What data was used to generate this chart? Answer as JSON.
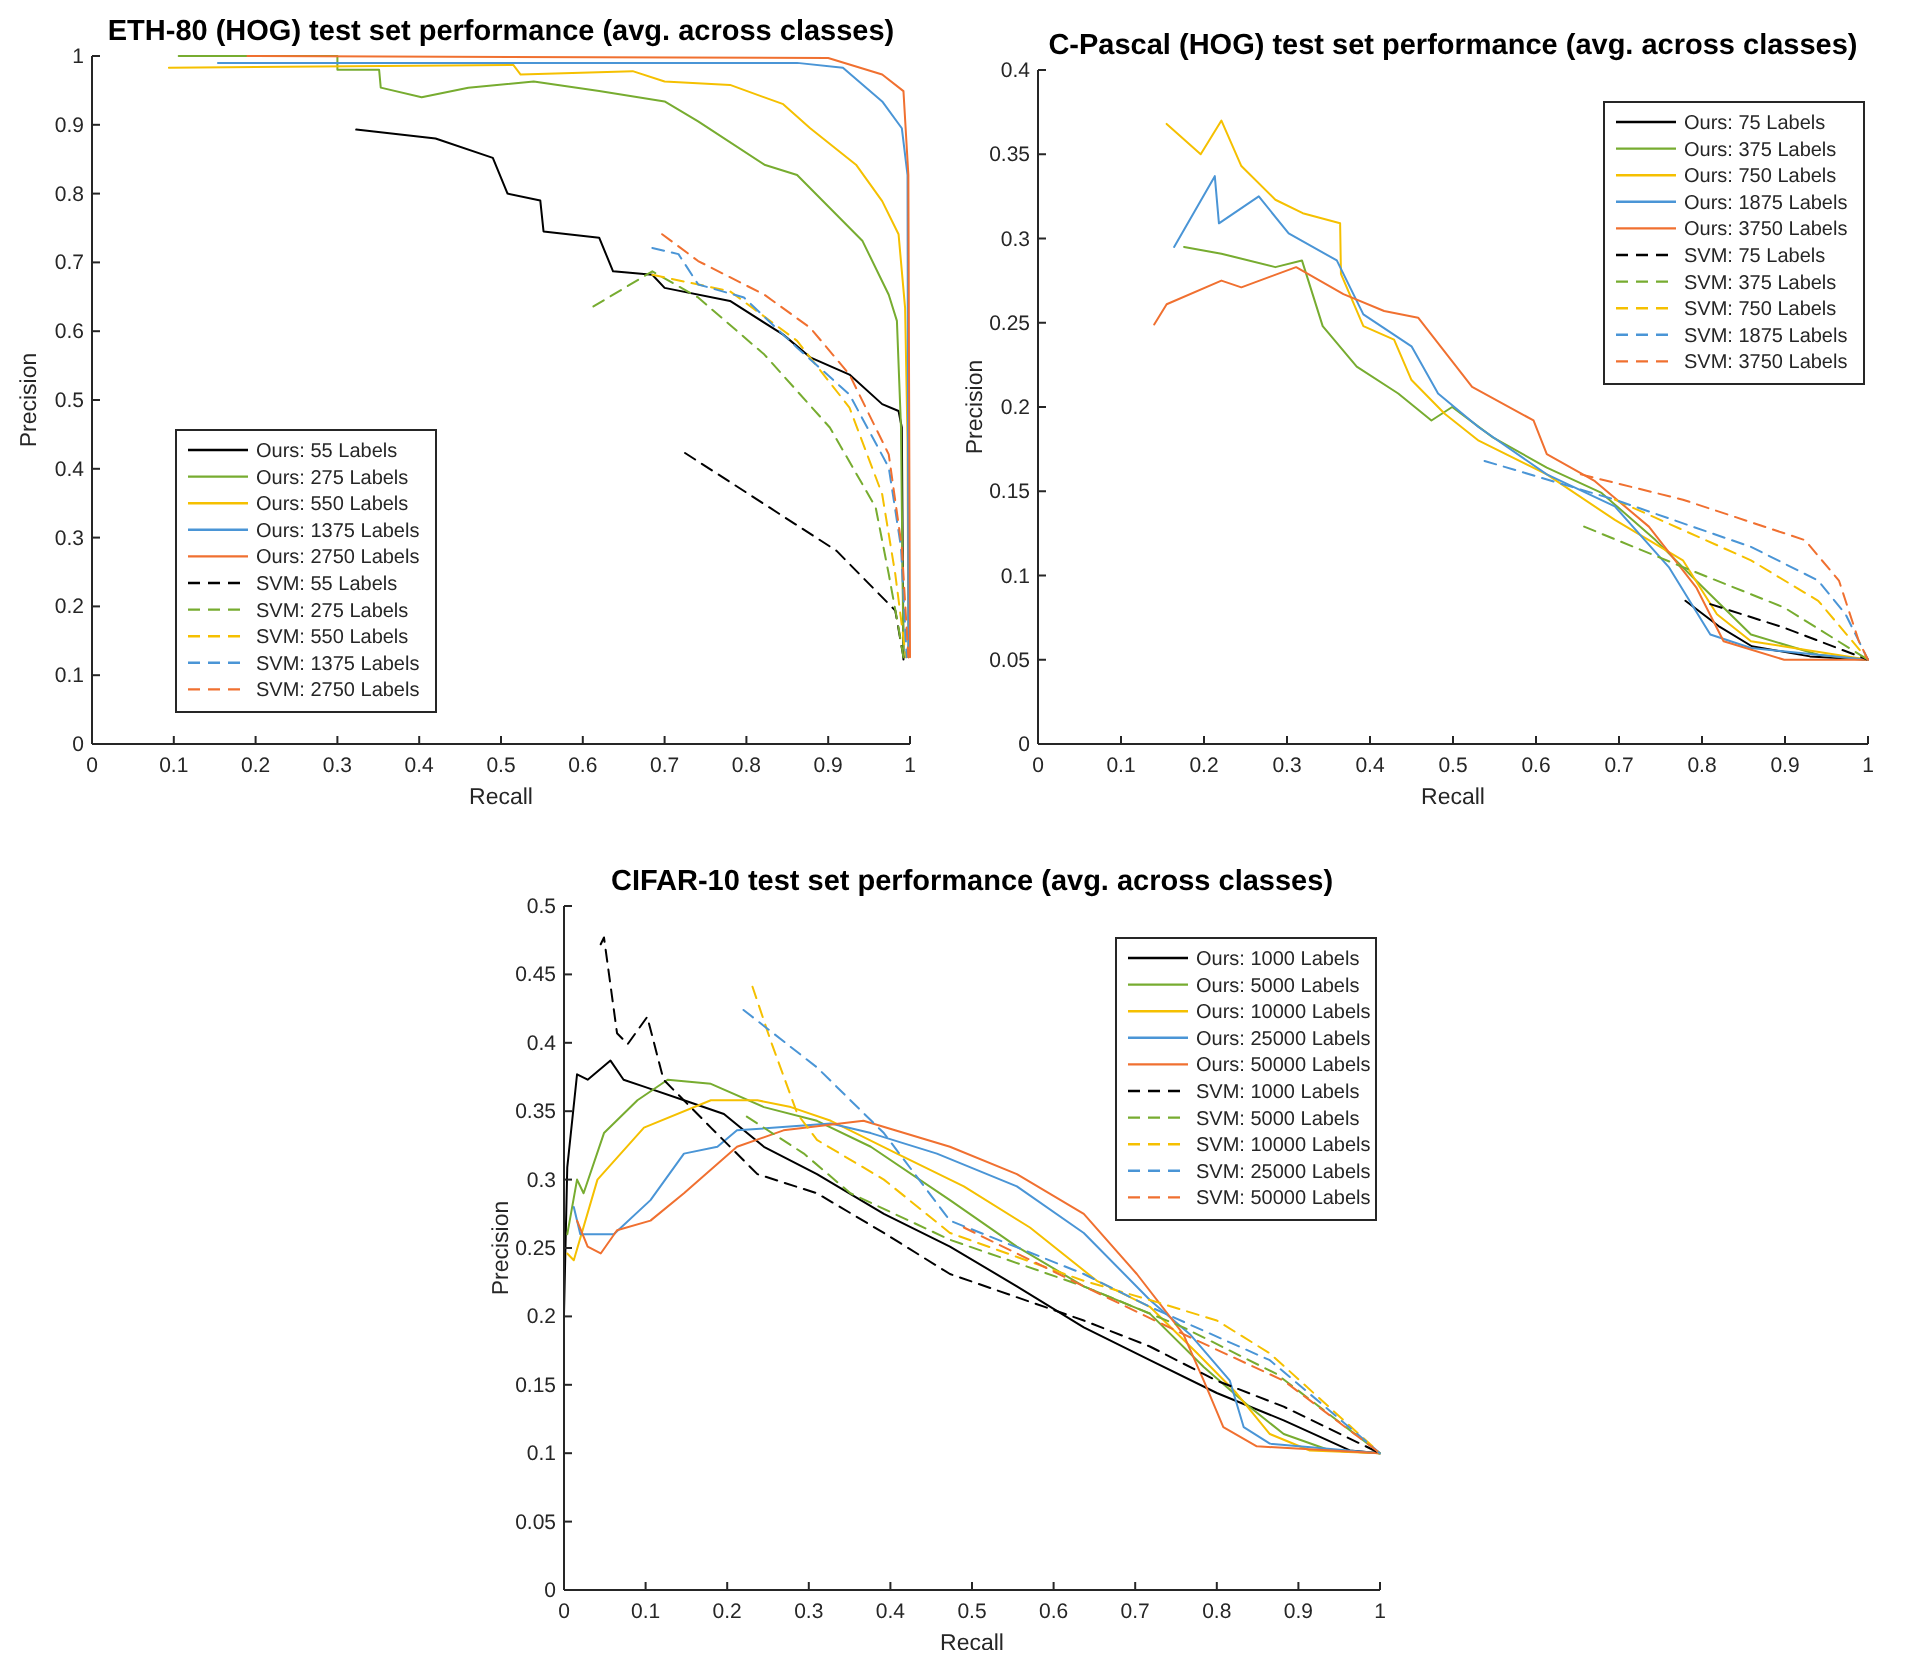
{
  "chart_data": [
    {
      "type": "line",
      "title": "ETH-80 (HOG) test set performance (avg. across classes)",
      "xlabel": "Recall",
      "ylabel": "Precision",
      "xlim": [
        0,
        1
      ],
      "ylim": [
        0,
        1
      ],
      "xticks": [
        0,
        0.1,
        0.2,
        0.3,
        0.4,
        0.5,
        0.6,
        0.7,
        0.8,
        0.9,
        1
      ],
      "yticks": [
        0,
        0.1,
        0.2,
        0.3,
        0.4,
        0.5,
        0.6,
        0.7,
        0.8,
        0.9,
        1
      ],
      "grid": false,
      "legend": "bottom left",
      "series": [
        {
          "name": "Ours: 55 Labels",
          "color": "#000000",
          "line_style": "solid",
          "x": [
            0.323,
            0.42,
            0.49,
            0.508,
            0.548,
            0.552,
            0.62,
            0.637,
            0.685,
            0.7,
            0.78,
            0.845,
            0.878,
            0.926,
            0.966,
            0.986,
            0.99,
            0.992
          ],
          "values": [
            0.893,
            0.88,
            0.852,
            0.8,
            0.79,
            0.745,
            0.736,
            0.687,
            0.682,
            0.663,
            0.644,
            0.595,
            0.562,
            0.537,
            0.494,
            0.484,
            0.46,
            0.123
          ]
        },
        {
          "name": "Ours: 275 Labels",
          "color": "#77ac30",
          "line_style": "solid",
          "x": [
            0.106,
            0.3,
            0.3,
            0.351,
            0.353,
            0.403,
            0.46,
            0.54,
            0.62,
            0.7,
            0.741,
            0.822,
            0.862,
            0.902,
            0.942,
            0.974,
            0.984,
            0.989,
            0.992
          ],
          "values": [
            1,
            1,
            0.98,
            0.98,
            0.954,
            0.94,
            0.954,
            0.963,
            0.949,
            0.934,
            0.905,
            0.842,
            0.827,
            0.779,
            0.731,
            0.653,
            0.615,
            0.46,
            0.126
          ]
        },
        {
          "name": "Ours: 550 Labels",
          "color": "#f5c000",
          "line_style": "solid",
          "x": [
            0.094,
            0.515,
            0.524,
            0.661,
            0.7,
            0.78,
            0.845,
            0.878,
            0.934,
            0.966,
            0.986,
            0.994,
            0.997,
            0.998
          ],
          "values": [
            0.983,
            0.987,
            0.973,
            0.978,
            0.963,
            0.958,
            0.93,
            0.895,
            0.842,
            0.789,
            0.741,
            0.634,
            0.44,
            0.126
          ]
        },
        {
          "name": "Ours: 1375 Labels",
          "color": "#4a95d6",
          "line_style": "solid",
          "x": [
            0.154,
            0.862,
            0.918,
            0.966,
            0.99,
            0.997,
            0.998
          ],
          "values": [
            0.99,
            0.99,
            0.983,
            0.934,
            0.895,
            0.827,
            0.126
          ]
        },
        {
          "name": "Ours: 2750 Labels",
          "color": "#f07030",
          "line_style": "solid",
          "x": [
            0.19,
            0.9,
            0.966,
            0.992,
            0.998,
            1
          ],
          "values": [
            1,
            0.997,
            0.973,
            0.949,
            0.827,
            0.126
          ]
        },
        {
          "name": "SVM: 55 Labels",
          "color": "#000000",
          "line_style": "dashed",
          "x": [
            0.725,
            0.91,
            0.982,
            0.992
          ],
          "values": [
            0.423,
            0.281,
            0.194,
            0.126
          ]
        },
        {
          "name": "SVM: 275 Labels",
          "color": "#77ac30",
          "line_style": "dashed",
          "x": [
            0.613,
            0.685,
            0.741,
            0.822,
            0.902,
            0.958,
            0.974,
            0.986,
            0.992
          ],
          "values": [
            0.636,
            0.687,
            0.649,
            0.566,
            0.46,
            0.344,
            0.247,
            0.169,
            0.126
          ]
        },
        {
          "name": "SVM: 550 Labels",
          "color": "#f5c000",
          "line_style": "dashed",
          "x": [
            0.685,
            0.78,
            0.862,
            0.926,
            0.966,
            0.982,
            0.995
          ],
          "values": [
            0.682,
            0.658,
            0.586,
            0.489,
            0.363,
            0.247,
            0.126
          ]
        },
        {
          "name": "SVM: 1375 Labels",
          "color": "#4a95d6",
          "line_style": "dashed",
          "x": [
            0.685,
            0.717,
            0.741,
            0.797,
            0.862,
            0.926,
            0.974,
            0.989,
            0.996
          ],
          "values": [
            0.721,
            0.712,
            0.668,
            0.649,
            0.576,
            0.508,
            0.402,
            0.286,
            0.126
          ]
        },
        {
          "name": "SVM: 2750 Labels",
          "color": "#f07030",
          "line_style": "dashed",
          "x": [
            0.697,
            0.741,
            0.822,
            0.878,
            0.926,
            0.974,
            0.99,
            0.998
          ],
          "values": [
            0.741,
            0.702,
            0.653,
            0.605,
            0.537,
            0.421,
            0.286,
            0.126
          ]
        }
      ]
    },
    {
      "type": "line",
      "title": "C-Pascal (HOG) test set performance (avg. across classes)",
      "xlabel": "Recall",
      "ylabel": "Precision",
      "xlim": [
        0,
        1
      ],
      "ylim": [
        0,
        0.4
      ],
      "xticks": [
        0,
        0.1,
        0.2,
        0.3,
        0.4,
        0.5,
        0.6,
        0.7,
        0.8,
        0.9,
        1
      ],
      "yticks": [
        0,
        0.05,
        0.1,
        0.15,
        0.2,
        0.25,
        0.3,
        0.35,
        0.4
      ],
      "grid": false,
      "legend": "top right",
      "series": [
        {
          "name": "Ours: 75 Labels",
          "color": "#000000",
          "line_style": "solid",
          "x": [
            0.78,
            0.82,
            0.86,
            0.93,
            1
          ],
          "values": [
            0.085,
            0.07,
            0.058,
            0.052,
            0.05
          ]
        },
        {
          "name": "Ours: 375 Labels",
          "color": "#77ac30",
          "line_style": "solid",
          "x": [
            0.176,
            0.221,
            0.286,
            0.318,
            0.343,
            0.384,
            0.434,
            0.474,
            0.499,
            0.548,
            0.613,
            0.679,
            0.744,
            0.801,
            0.859,
            0.94,
            1
          ],
          "values": [
            0.295,
            0.291,
            0.283,
            0.287,
            0.248,
            0.224,
            0.208,
            0.192,
            0.2,
            0.182,
            0.164,
            0.149,
            0.121,
            0.093,
            0.065,
            0.053,
            0.05
          ]
        },
        {
          "name": "Ours: 750 Labels",
          "color": "#f5c000",
          "line_style": "solid",
          "x": [
            0.155,
            0.196,
            0.221,
            0.245,
            0.286,
            0.319,
            0.364,
            0.365,
            0.392,
            0.429,
            0.45,
            0.49,
            0.531,
            0.613,
            0.695,
            0.777,
            0.818,
            0.859,
            1
          ],
          "values": [
            0.368,
            0.35,
            0.37,
            0.343,
            0.323,
            0.315,
            0.309,
            0.279,
            0.248,
            0.24,
            0.216,
            0.196,
            0.18,
            0.16,
            0.133,
            0.109,
            0.077,
            0.061,
            0.05
          ]
        },
        {
          "name": "Ours: 1875 Labels",
          "color": "#4a95d6",
          "line_style": "solid",
          "x": [
            0.164,
            0.213,
            0.218,
            0.266,
            0.302,
            0.36,
            0.392,
            0.45,
            0.482,
            0.531,
            0.613,
            0.695,
            0.76,
            0.81,
            0.859,
            1
          ],
          "values": [
            0.295,
            0.337,
            0.309,
            0.325,
            0.303,
            0.287,
            0.255,
            0.236,
            0.208,
            0.188,
            0.16,
            0.141,
            0.105,
            0.065,
            0.057,
            0.05
          ]
        },
        {
          "name": "Ours: 3750 Labels",
          "color": "#f07030",
          "line_style": "solid",
          "x": [
            0.14,
            0.155,
            0.221,
            0.245,
            0.311,
            0.368,
            0.417,
            0.458,
            0.523,
            0.597,
            0.613,
            0.671,
            0.736,
            0.793,
            0.826,
            0.899,
            1
          ],
          "values": [
            0.249,
            0.261,
            0.275,
            0.271,
            0.283,
            0.267,
            0.257,
            0.253,
            0.212,
            0.192,
            0.172,
            0.156,
            0.129,
            0.093,
            0.061,
            0.05,
            0.05
          ]
        },
        {
          "name": "SVM: 75 Labels",
          "color": "#000000",
          "line_style": "dashed",
          "x": [
            0.81,
            0.899,
            1
          ],
          "values": [
            0.083,
            0.069,
            0.05
          ]
        },
        {
          "name": "SVM: 375 Labels",
          "color": "#77ac30",
          "line_style": "dashed",
          "x": [
            0.658,
            0.777,
            0.899,
            1
          ],
          "values": [
            0.129,
            0.105,
            0.081,
            0.05
          ]
        },
        {
          "name": "SVM: 750 Labels",
          "color": "#f5c000",
          "line_style": "dashed",
          "x": [
            0.695,
            0.859,
            0.94,
            1
          ],
          "values": [
            0.145,
            0.109,
            0.085,
            0.05
          ]
        },
        {
          "name": "SVM: 1875 Labels",
          "color": "#4a95d6",
          "line_style": "dashed",
          "x": [
            0.538,
            0.695,
            0.859,
            0.94,
            0.973,
            1
          ],
          "values": [
            0.168,
            0.145,
            0.117,
            0.097,
            0.077,
            0.05
          ]
        },
        {
          "name": "SVM: 3750 Labels",
          "color": "#f07030",
          "line_style": "dashed",
          "x": [
            0.654,
            0.777,
            0.924,
            0.965,
            0.989,
            1
          ],
          "values": [
            0.16,
            0.145,
            0.121,
            0.097,
            0.061,
            0.05
          ]
        }
      ]
    },
    {
      "type": "line",
      "title": "CIFAR-10 test set performance (avg. across classes)",
      "xlabel": "Recall",
      "ylabel": "Precision",
      "xlim": [
        0,
        1
      ],
      "ylim": [
        0,
        0.5
      ],
      "xticks": [
        0,
        0.1,
        0.2,
        0.3,
        0.4,
        0.5,
        0.6,
        0.7,
        0.8,
        0.9,
        1
      ],
      "yticks": [
        0,
        0.05,
        0.1,
        0.15,
        0.2,
        0.25,
        0.3,
        0.35,
        0.4,
        0.45,
        0.5
      ],
      "grid": false,
      "legend": "top right",
      "series": [
        {
          "name": "Ours: 1000 Labels",
          "color": "#000000",
          "line_style": "solid",
          "x": [
            0,
            0.004,
            0.016,
            0.029,
            0.057,
            0.073,
            0.098,
            0.147,
            0.196,
            0.245,
            0.31,
            0.392,
            0.473,
            0.555,
            0.637,
            0.718,
            0.8,
            0.882,
            0.963,
            1
          ],
          "values": [
            0.202,
            0.309,
            0.377,
            0.373,
            0.387,
            0.373,
            0.368,
            0.358,
            0.348,
            0.324,
            0.304,
            0.275,
            0.251,
            0.222,
            0.192,
            0.168,
            0.144,
            0.124,
            0.102,
            0.1
          ]
        },
        {
          "name": "Ours: 5000 Labels",
          "color": "#77ac30",
          "line_style": "solid",
          "x": [
            0.004,
            0.016,
            0.024,
            0.049,
            0.09,
            0.127,
            0.18,
            0.245,
            0.31,
            0.376,
            0.473,
            0.555,
            0.637,
            0.718,
            0.784,
            0.84,
            0.882,
            0.939,
            1
          ],
          "values": [
            0.26,
            0.3,
            0.29,
            0.334,
            0.358,
            0.373,
            0.37,
            0.353,
            0.343,
            0.324,
            0.285,
            0.251,
            0.222,
            0.202,
            0.163,
            0.134,
            0.114,
            0.102,
            0.1
          ]
        },
        {
          "name": "Ours: 10000 Labels",
          "color": "#f5c000",
          "line_style": "solid",
          "x": [
            0.004,
            0.012,
            0.041,
            0.098,
            0.18,
            0.237,
            0.278,
            0.327,
            0.408,
            0.49,
            0.571,
            0.653,
            0.718,
            0.776,
            0.824,
            0.865,
            0.914,
            1
          ],
          "values": [
            0.246,
            0.241,
            0.3,
            0.338,
            0.358,
            0.358,
            0.353,
            0.343,
            0.319,
            0.295,
            0.265,
            0.226,
            0.207,
            0.173,
            0.144,
            0.114,
            0.102,
            0.1
          ]
        },
        {
          "name": "Ours: 25000 Labels",
          "color": "#4a95d6",
          "line_style": "solid",
          "x": [
            0.012,
            0.02,
            0.061,
            0.106,
            0.147,
            0.188,
            0.212,
            0.327,
            0.376,
            0.457,
            0.555,
            0.637,
            0.718,
            0.767,
            0.816,
            0.833,
            0.865,
            1
          ],
          "values": [
            0.28,
            0.26,
            0.26,
            0.285,
            0.319,
            0.324,
            0.336,
            0.341,
            0.334,
            0.319,
            0.295,
            0.261,
            0.212,
            0.187,
            0.153,
            0.119,
            0.107,
            0.1
          ]
        },
        {
          "name": "Ours: 50000 Labels",
          "color": "#f07030",
          "line_style": "solid",
          "x": [
            0.016,
            0.029,
            0.045,
            0.065,
            0.106,
            0.147,
            0.212,
            0.269,
            0.367,
            0.473,
            0.555,
            0.637,
            0.702,
            0.759,
            0.784,
            0.808,
            0.849,
            1
          ],
          "values": [
            0.27,
            0.251,
            0.246,
            0.263,
            0.27,
            0.29,
            0.324,
            0.336,
            0.343,
            0.324,
            0.304,
            0.275,
            0.231,
            0.187,
            0.153,
            0.119,
            0.105,
            0.1
          ]
        },
        {
          "name": "SVM: 1000 Labels",
          "color": "#000000",
          "line_style": "dashed",
          "x": [
            0.045,
            0.049,
            0.065,
            0.078,
            0.102,
            0.122,
            0.18,
            0.237,
            0.31,
            0.392,
            0.473,
            0.637,
            0.718,
            0.8,
            0.882,
            1
          ],
          "values": [
            0.472,
            0.477,
            0.407,
            0.399,
            0.419,
            0.373,
            0.338,
            0.304,
            0.29,
            0.261,
            0.231,
            0.197,
            0.178,
            0.153,
            0.134,
            0.1
          ]
        },
        {
          "name": "SVM: 5000 Labels",
          "color": "#77ac30",
          "line_style": "dashed",
          "x": [
            0.224,
            0.294,
            0.351,
            0.473,
            0.637,
            0.759,
            0.873,
            1
          ],
          "values": [
            0.346,
            0.319,
            0.29,
            0.256,
            0.222,
            0.192,
            0.158,
            0.1
          ]
        },
        {
          "name": "SVM: 10000 Labels",
          "color": "#f5c000",
          "line_style": "dashed",
          "x": [
            0.231,
            0.253,
            0.286,
            0.31,
            0.392,
            0.473,
            0.637,
            0.718,
            0.8,
            0.865,
            1
          ],
          "values": [
            0.441,
            0.402,
            0.348,
            0.329,
            0.3,
            0.261,
            0.226,
            0.212,
            0.197,
            0.173,
            0.1
          ]
        },
        {
          "name": "SVM: 25000 Labels",
          "color": "#4a95d6",
          "line_style": "dashed",
          "x": [
            0.22,
            0.31,
            0.392,
            0.473,
            0.637,
            0.718,
            0.865,
            1
          ],
          "values": [
            0.424,
            0.382,
            0.334,
            0.27,
            0.231,
            0.207,
            0.168,
            0.1
          ]
        },
        {
          "name": "SVM: 50000 Labels",
          "color": "#f07030",
          "line_style": "dashed",
          "x": [
            0.49,
            0.637,
            0.759,
            0.882,
            1
          ],
          "values": [
            0.265,
            0.222,
            0.187,
            0.153,
            0.1
          ]
        }
      ]
    }
  ]
}
